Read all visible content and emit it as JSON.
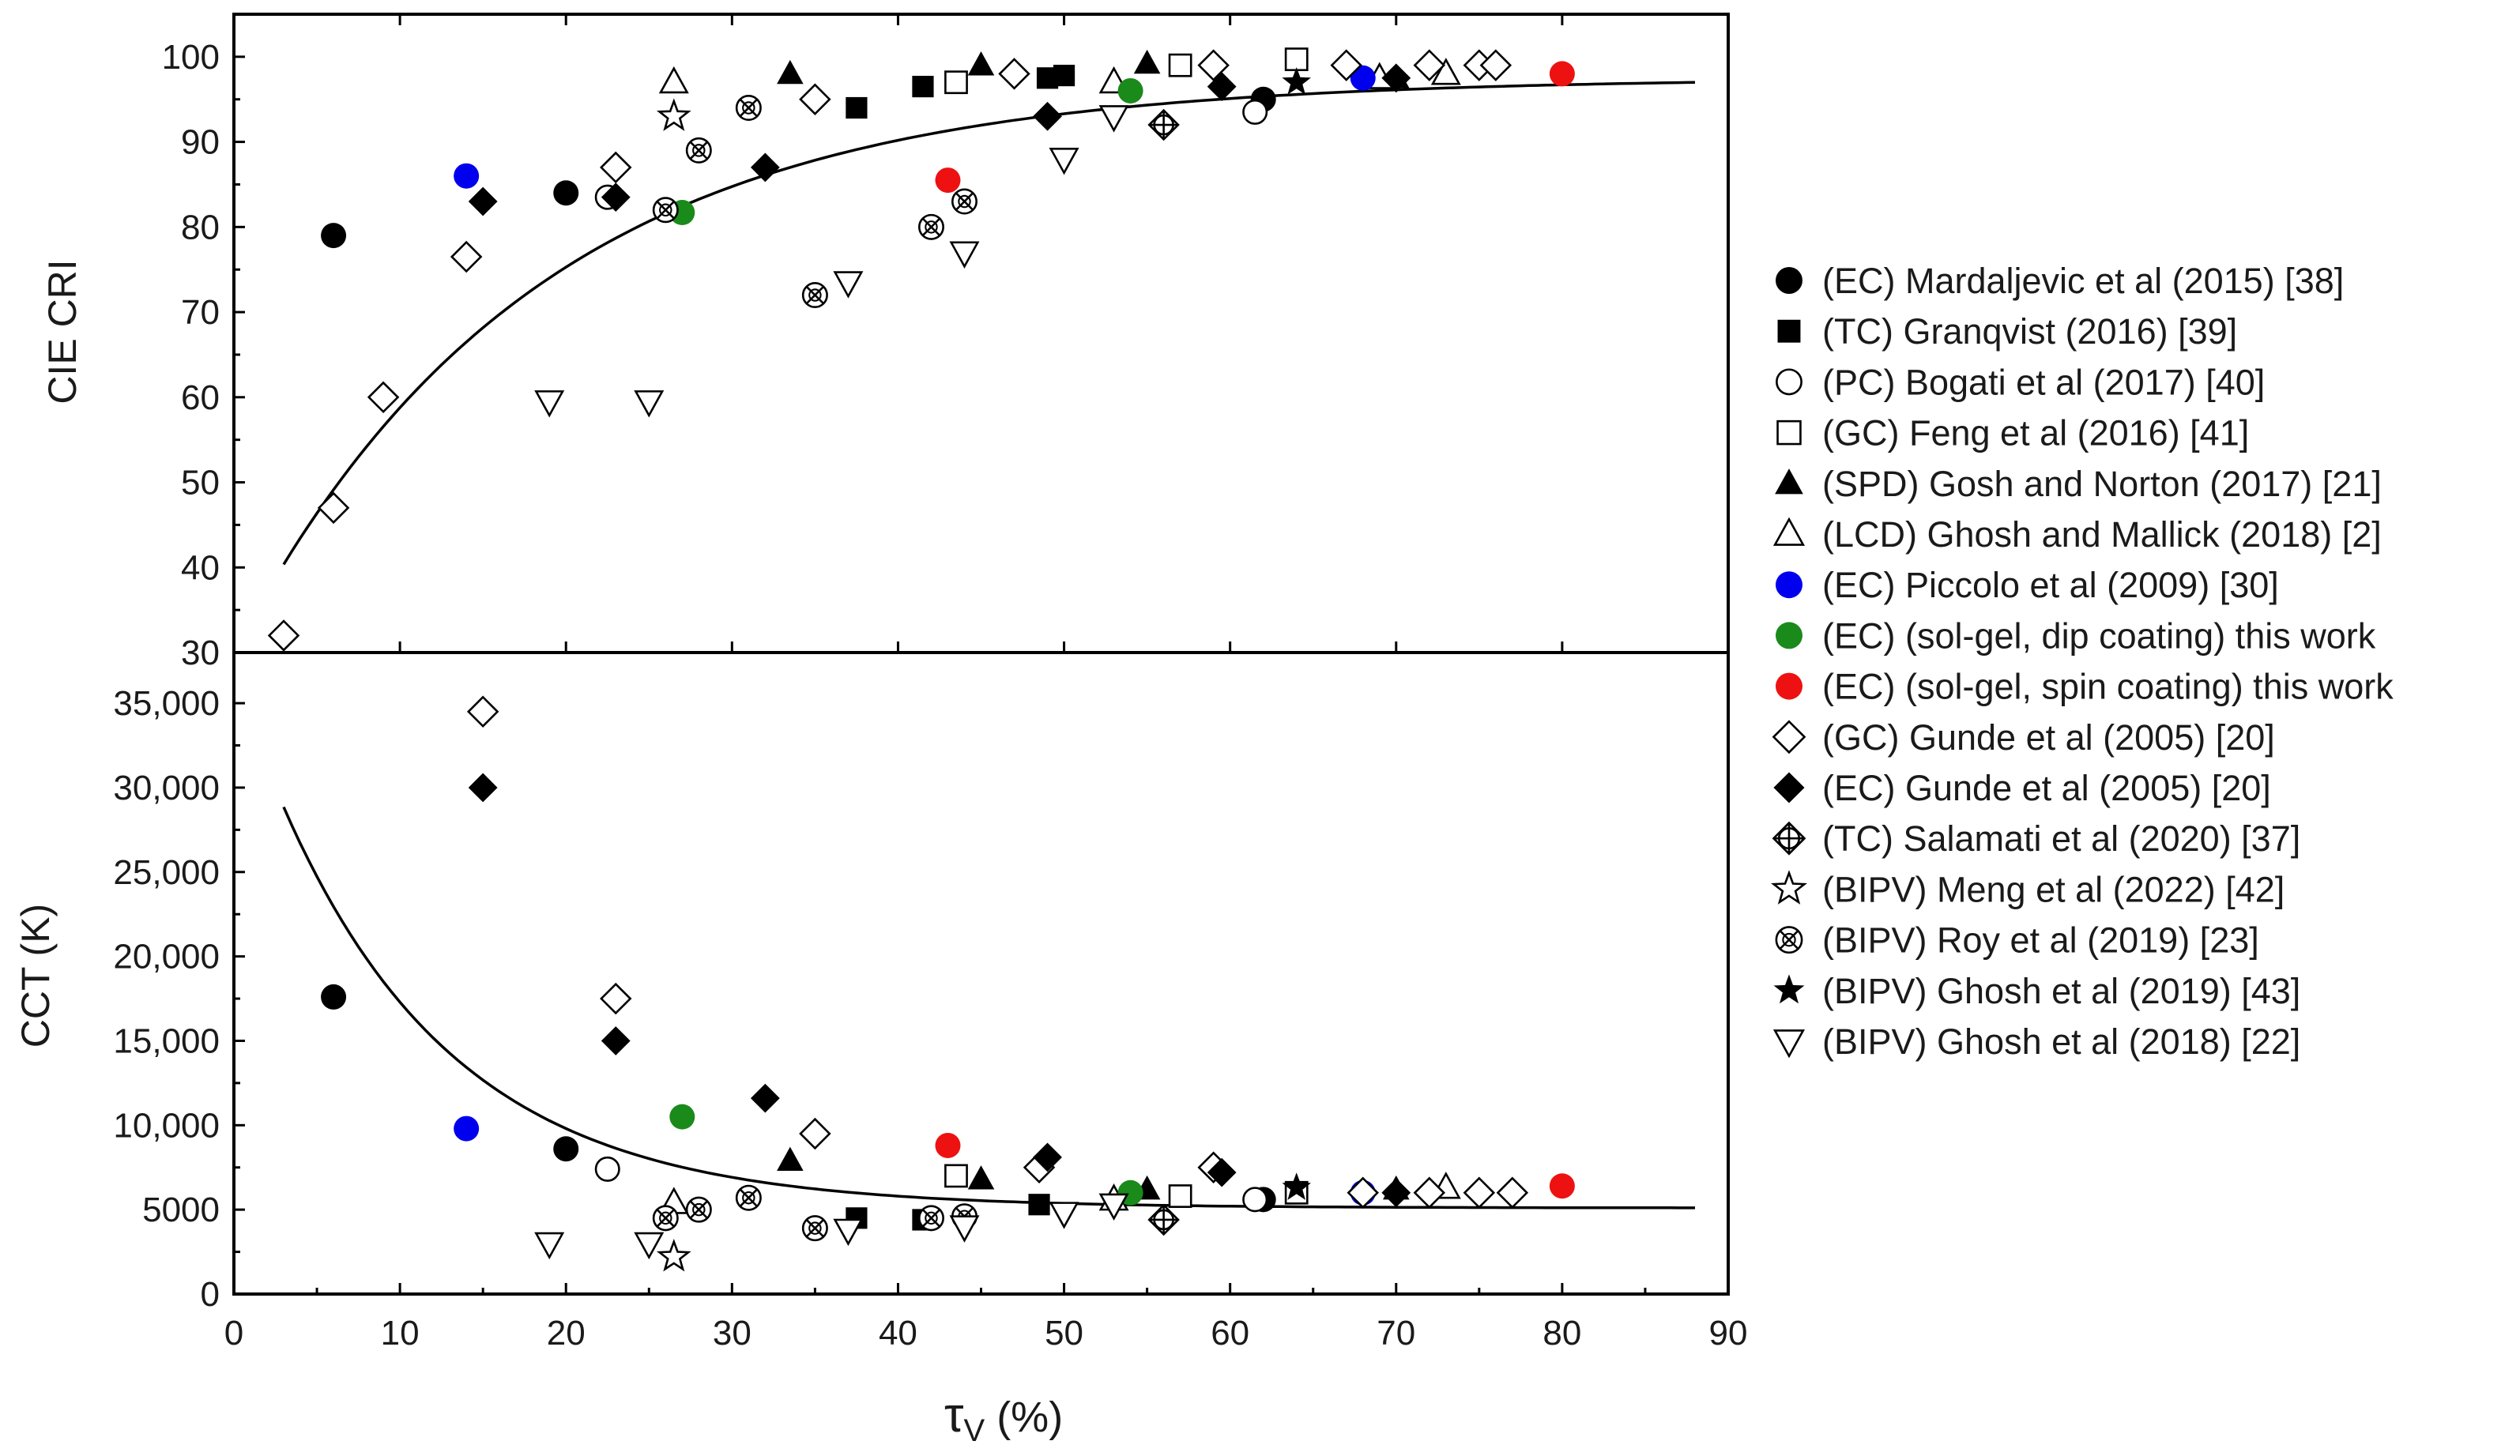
{
  "chart_data": {
    "type": "scatter",
    "x_axis": {
      "label": "τ",
      "label_sub": "V",
      "label_unit": " (%)",
      "range": [
        0,
        90
      ],
      "ticks": [
        "0",
        "10",
        "20",
        "30",
        "40",
        "50",
        "60",
        "70",
        "80",
        "90"
      ]
    },
    "panels": [
      {
        "id": "cri",
        "ylabel": "CIE CRI",
        "ylim": [
          30,
          105
        ],
        "yticks": [
          30,
          40,
          50,
          60,
          70,
          80,
          90,
          100
        ],
        "ytick_labels": [
          "30",
          "40",
          "50",
          "60",
          "70",
          "80",
          "90",
          "100"
        ],
        "fit_curve": {
          "type": "exp_rise",
          "y0": 30,
          "amplitude": 67.5,
          "tau": 18,
          "x_from": 3,
          "x_to": 88
        }
      },
      {
        "id": "cct",
        "ylabel": "CCT (K)",
        "ylim": [
          0,
          38000
        ],
        "yticks": [
          0,
          5000,
          10000,
          15000,
          20000,
          25000,
          30000,
          35000
        ],
        "ytick_labels": [
          "0",
          "5000",
          "10,000",
          "15,000",
          "20,000",
          "25,000",
          "30,000",
          "35,000"
        ],
        "fit_curve": {
          "type": "exp_decay",
          "y0": 5100,
          "amplitude": 31600,
          "tau": 10.5,
          "x_from": 3,
          "x_to": 88
        }
      }
    ],
    "series": [
      {
        "name": "(EC) Mardaljevic et al (2015) [38]",
        "marker": "circle-filled",
        "color": "#000000",
        "cri": [
          [
            6,
            79
          ],
          [
            20,
            84
          ],
          [
            62,
            95
          ]
        ],
        "cct": [
          [
            6,
            17600
          ],
          [
            20,
            8600
          ],
          [
            62,
            5600
          ]
        ]
      },
      {
        "name": "(TC) Granqvist (2016) [39]",
        "marker": "square-filled",
        "color": "#000000",
        "cri": [
          [
            37.5,
            94
          ],
          [
            41.5,
            96.5
          ],
          [
            49,
            97.5
          ],
          [
            50,
            97.8
          ]
        ],
        "cct": [
          [
            37.5,
            4500
          ],
          [
            41.5,
            4400
          ],
          [
            48.5,
            5300
          ]
        ]
      },
      {
        "name": "(PC) Bogati et al (2017) [40]",
        "marker": "circle-open",
        "color": "#000000",
        "cri": [
          [
            22.5,
            83.5
          ],
          [
            61.5,
            93.5
          ]
        ],
        "cct": [
          [
            22.5,
            7400
          ],
          [
            61.5,
            5600
          ]
        ]
      },
      {
        "name": "(GC) Feng et al (2016) [41]",
        "marker": "square-open",
        "color": "#000000",
        "cri": [
          [
            43.5,
            97
          ],
          [
            57,
            99
          ],
          [
            64,
            99.7
          ]
        ],
        "cct": [
          [
            43.5,
            7000
          ],
          [
            57,
            5800
          ],
          [
            64,
            6000
          ]
        ]
      },
      {
        "name": "(SPD) Gosh and Norton (2017) [21]",
        "marker": "triangle-filled",
        "color": "#000000",
        "cri": [
          [
            33.5,
            98
          ],
          [
            45,
            99
          ],
          [
            55,
            99.2
          ],
          [
            70,
            97.5
          ]
        ],
        "cct": [
          [
            33.5,
            7900
          ],
          [
            45,
            6800
          ],
          [
            55,
            6200
          ],
          [
            70,
            6200
          ]
        ]
      },
      {
        "name": "(LCD) Ghosh and Mallick (2018) [2]",
        "marker": "triangle-open",
        "color": "#000000",
        "cri": [
          [
            26.5,
            97
          ],
          [
            53,
            97
          ],
          [
            69,
            97.5
          ],
          [
            73,
            98
          ]
        ],
        "cct": [
          [
            26.5,
            5400
          ],
          [
            53,
            5600
          ],
          [
            73,
            6300
          ]
        ]
      },
      {
        "name": "(EC) Piccolo et al (2009) [30]",
        "marker": "circle-filled",
        "color": "#0000ee",
        "cri": [
          [
            14,
            86
          ],
          [
            68,
            97.5
          ]
        ],
        "cct": [
          [
            14,
            9800
          ],
          [
            68,
            6000
          ]
        ]
      },
      {
        "name": "(EC) (sol-gel, dip coating) this work",
        "marker": "circle-filled",
        "color": "#1a8a1a",
        "cri": [
          [
            27,
            81.7
          ],
          [
            54,
            96
          ]
        ],
        "cct": [
          [
            27,
            10500
          ],
          [
            54,
            6000
          ]
        ]
      },
      {
        "name": "(EC) (sol-gel, spin coating) this work",
        "marker": "circle-filled",
        "color": "#ee1111",
        "cri": [
          [
            43,
            85.5
          ],
          [
            80,
            98
          ]
        ],
        "cct": [
          [
            43,
            8800
          ],
          [
            80,
            6400
          ]
        ]
      },
      {
        "name": "(GC) Gunde et al (2005) [20]",
        "marker": "diamond-open",
        "color": "#000000",
        "cri": [
          [
            3,
            32
          ],
          [
            6,
            47
          ],
          [
            9,
            60
          ],
          [
            14,
            76.5
          ],
          [
            23,
            87
          ],
          [
            35,
            95
          ],
          [
            47,
            98
          ],
          [
            59,
            99
          ],
          [
            67,
            99
          ],
          [
            72,
            99
          ],
          [
            75,
            99
          ],
          [
            76,
            99
          ]
        ],
        "cct": [
          [
            15,
            34500
          ],
          [
            23,
            17500
          ],
          [
            35,
            9500
          ],
          [
            48.5,
            7500
          ],
          [
            59,
            7500
          ],
          [
            68,
            6000
          ],
          [
            72,
            6000
          ],
          [
            75,
            6000
          ],
          [
            77,
            6000
          ]
        ]
      },
      {
        "name": "(EC) Gunde et al (2005) [20]",
        "marker": "diamond-filled",
        "color": "#000000",
        "cri": [
          [
            15,
            83
          ],
          [
            23,
            83.5
          ],
          [
            32,
            87
          ],
          [
            49,
            93
          ],
          [
            59.5,
            96.5
          ],
          [
            70,
            97.5
          ]
        ],
        "cct": [
          [
            15,
            30000
          ],
          [
            23,
            15000
          ],
          [
            32,
            11600
          ],
          [
            49,
            8100
          ],
          [
            59.5,
            7200
          ],
          [
            70,
            6000
          ]
        ]
      },
      {
        "name": "(TC) Salamati et al (2020) [37]",
        "marker": "circle-plus",
        "color": "#000000",
        "cri": [
          [
            56,
            92
          ]
        ],
        "cct": [
          [
            56,
            4400
          ]
        ]
      },
      {
        "name": "(BIPV) Meng et al (2022) [42]",
        "marker": "star-open",
        "color": "#000000",
        "cri": [
          [
            26.5,
            93
          ]
        ],
        "cct": [
          [
            26.5,
            2200
          ]
        ]
      },
      {
        "name": "(BIPV) Roy et al (2019) [23]",
        "marker": "circle-x",
        "color": "#000000",
        "cri": [
          [
            26,
            82
          ],
          [
            28,
            89
          ],
          [
            31,
            94
          ],
          [
            35,
            72
          ],
          [
            42,
            80
          ],
          [
            44,
            83
          ]
        ],
        "cct": [
          [
            26,
            4500
          ],
          [
            28,
            5000
          ],
          [
            31,
            5700
          ],
          [
            35,
            3900
          ],
          [
            42,
            4500
          ],
          [
            44,
            4600
          ]
        ]
      },
      {
        "name": "(BIPV) Ghosh et al (2019) [43]",
        "marker": "star-filled",
        "color": "#000000",
        "cri": [
          [
            64,
            97
          ]
        ],
        "cct": [
          [
            64,
            6300
          ]
        ]
      },
      {
        "name": "(BIPV) Ghosh et al (2018) [22]",
        "marker": "triangle-down-open",
        "color": "#000000",
        "cri": [
          [
            19,
            59.5
          ],
          [
            25,
            59.5
          ],
          [
            37,
            73.5
          ],
          [
            44,
            77
          ],
          [
            50,
            88
          ],
          [
            53,
            93
          ]
        ],
        "cct": [
          [
            19,
            3000
          ],
          [
            25,
            3000
          ],
          [
            37,
            3800
          ],
          [
            44,
            4000
          ],
          [
            50,
            4800
          ],
          [
            53,
            5300
          ]
        ]
      }
    ]
  }
}
